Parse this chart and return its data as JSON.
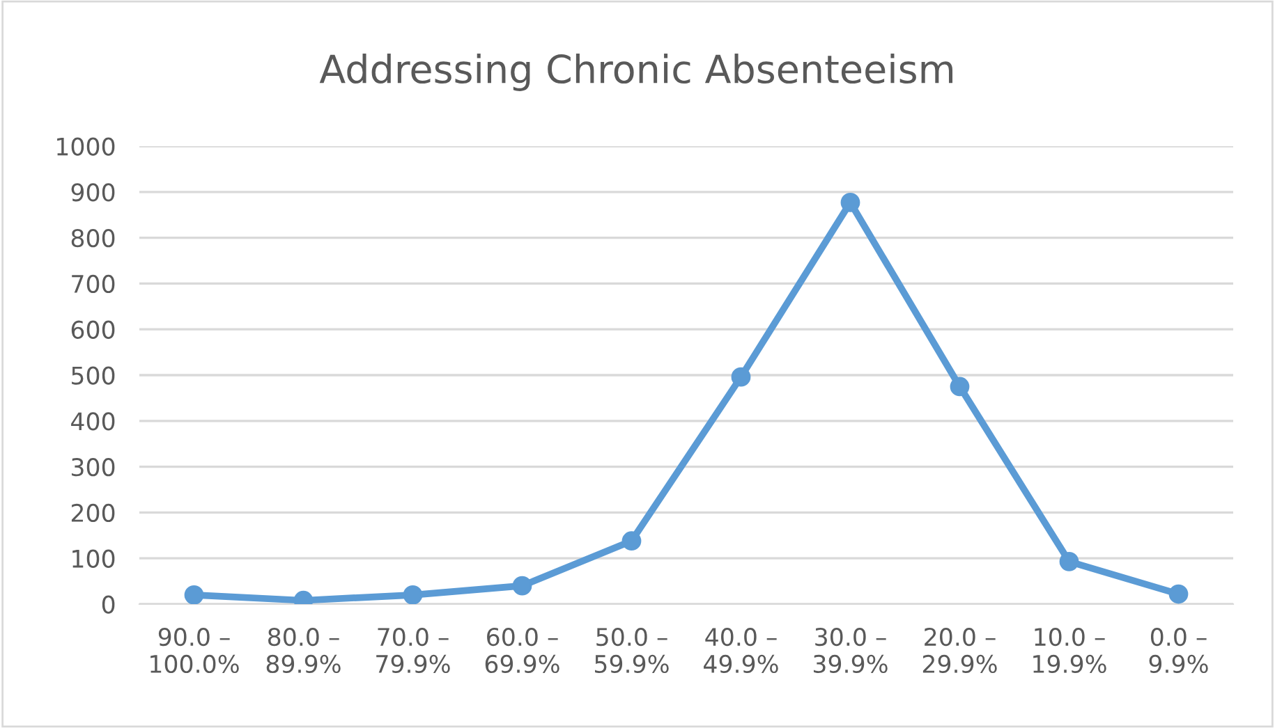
{
  "chart_data": {
    "type": "line",
    "title": "Addressing Chronic Absenteeism",
    "categories": [
      "90.0 –\n100.0%",
      "80.0 –\n89.9%",
      "70.0 –\n79.9%",
      "60.0 –\n69.9%",
      "50.0 –\n59.9%",
      "40.0 –\n49.9%",
      "30.0 –\n39.9%",
      "20.0 –\n29.9%",
      "10.0 –\n19.9%",
      "0.0 –\n9.9%"
    ],
    "series": [
      {
        "color": "#5b9bd5",
        "values": [
          20,
          8,
          20,
          40,
          138,
          496,
          877,
          475,
          93,
          22
        ]
      }
    ],
    "ylim": [
      0,
      1000
    ],
    "yticks": [
      0,
      100,
      200,
      300,
      400,
      500,
      600,
      700,
      800,
      900,
      1000
    ],
    "grid": "y",
    "marker": "circle",
    "line_style": "solid"
  }
}
